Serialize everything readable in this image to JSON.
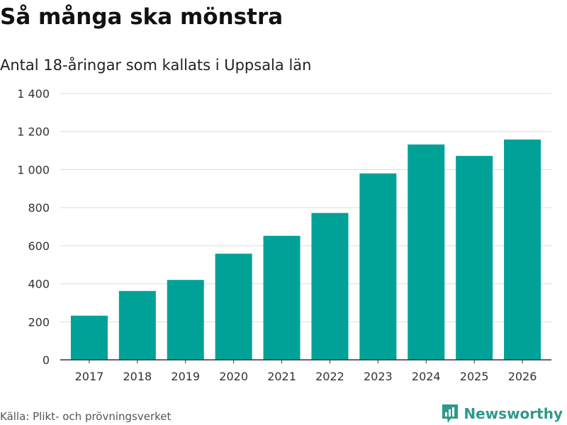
{
  "header": {
    "title": "Så många ska mönstra",
    "subtitle": "Antal 18-åringar som kallats i Uppsala län"
  },
  "footer": {
    "source": "Källa: Plikt- och prövningsverket",
    "brand": "Newsworthy"
  },
  "colors": {
    "bar": "#00a298",
    "brand": "#2e9a8a",
    "grid": "#dddddd",
    "axis": "#333333"
  },
  "chart_data": {
    "type": "bar",
    "title": "Så många ska mönstra",
    "subtitle": "Antal 18-åringar som kallats i Uppsala län",
    "xlabel": "",
    "ylabel": "",
    "categories": [
      "2017",
      "2018",
      "2019",
      "2020",
      "2021",
      "2022",
      "2023",
      "2024",
      "2025",
      "2026"
    ],
    "values": [
      232,
      362,
      420,
      558,
      652,
      772,
      980,
      1132,
      1072,
      1158
    ],
    "ylim": [
      0,
      1400
    ],
    "yticks": [
      0,
      200,
      400,
      600,
      800,
      1000,
      1200,
      1400
    ],
    "ytick_labels": [
      "0",
      "200",
      "400",
      "600",
      "800",
      "1 000",
      "1 200",
      "1 400"
    ],
    "grid": true
  }
}
